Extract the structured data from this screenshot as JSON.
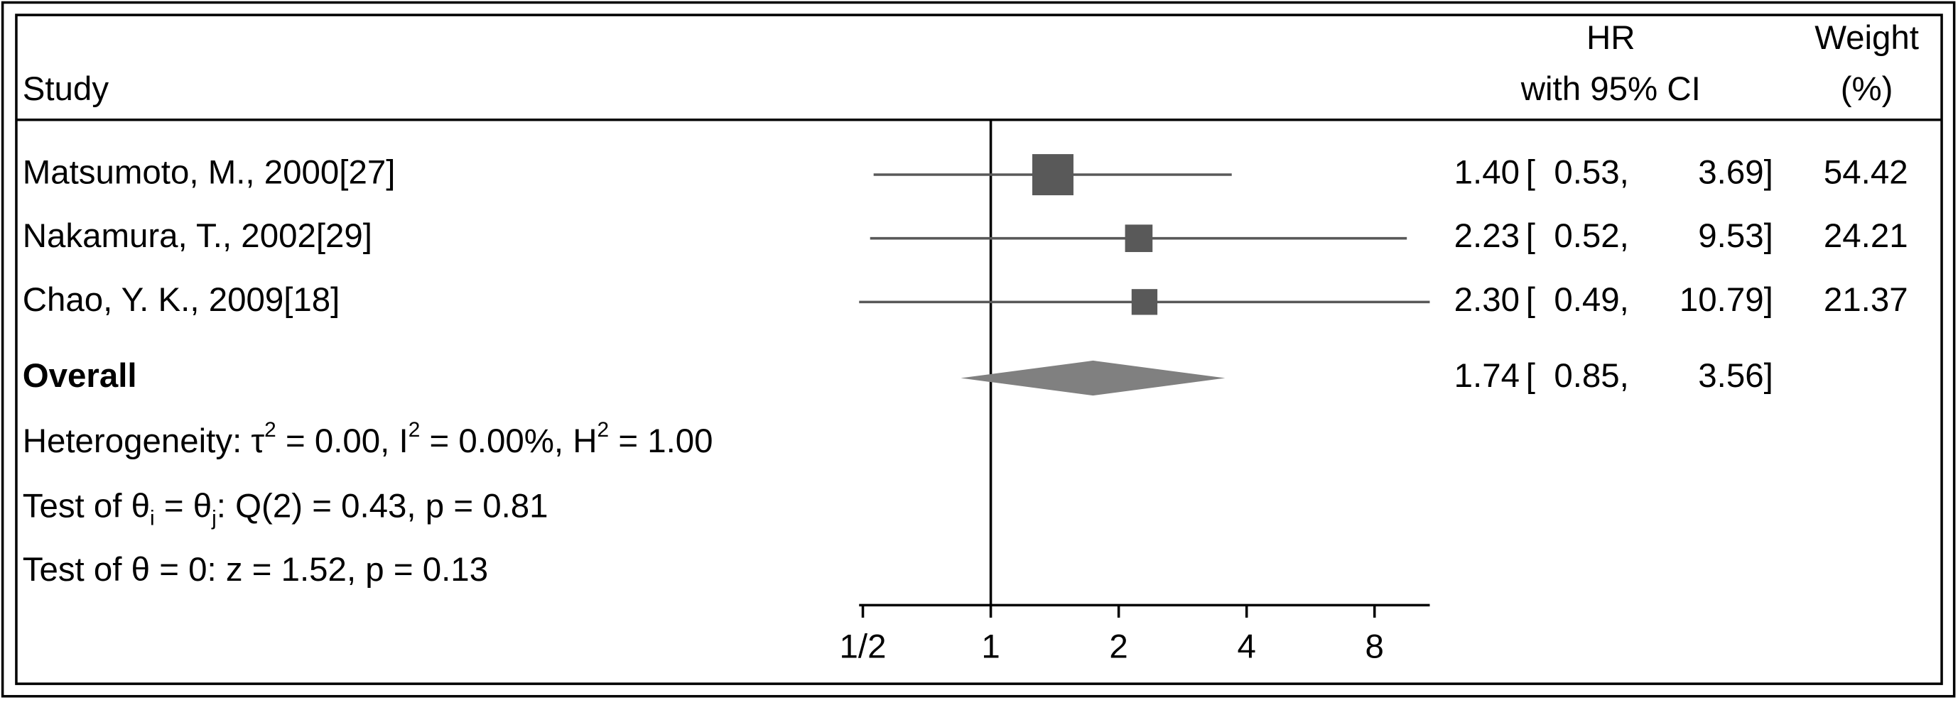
{
  "chart_data": {
    "type": "forest",
    "headers": {
      "study": "Study",
      "hr": "HR",
      "ci": "with 95% CI",
      "weight": "Weight",
      "weight_unit": "(%)"
    },
    "categories": [
      "Matsumoto, M., 2000[27]",
      "Nakamura, T., 2002[29]",
      "Chao, Y. K., 2009[18]"
    ],
    "values": [
      1.4,
      2.23,
      2.3
    ],
    "value_labels": [
      "1.40",
      "2.23",
      "2.30"
    ],
    "lower": [
      0.53,
      0.52,
      0.49
    ],
    "lower_labels": [
      "[  0.53,",
      "[  0.52,",
      "[  0.49,"
    ],
    "upper": [
      3.69,
      9.53,
      10.79
    ],
    "upper_labels": [
      "3.69]",
      "9.53]",
      "10.79]"
    ],
    "weights": [
      54.42,
      24.21,
      21.37
    ],
    "overall": {
      "label": "Overall",
      "value": 1.74,
      "lower": 0.85,
      "lower_label": "[  0.85,",
      "upper": 3.56,
      "upper_label": "3.56]"
    },
    "notes": [
      {
        "script": "sup",
        "parts": [
          "Heterogeneity: τ",
          "2",
          " = 0.00, I",
          "2",
          " = 0.00%, H",
          "2",
          " = 1.00"
        ]
      },
      {
        "script": "sub",
        "parts": [
          "Test of θ",
          "i",
          " = θ",
          "j",
          ": Q(2) = 0.43, p = 0.81"
        ]
      },
      {
        "script": "sup",
        "parts": [
          "Test of θ = 0: z = 1.52, p = 0.13"
        ]
      }
    ],
    "log_scale": true,
    "xlim": [
      0.49,
      10.79
    ],
    "xticks": [
      {
        "value": 0.5,
        "label": "1/2"
      },
      1,
      2,
      4,
      8
    ],
    "reference_line": 1,
    "color": "#595959",
    "overall_color": "#808080"
  }
}
